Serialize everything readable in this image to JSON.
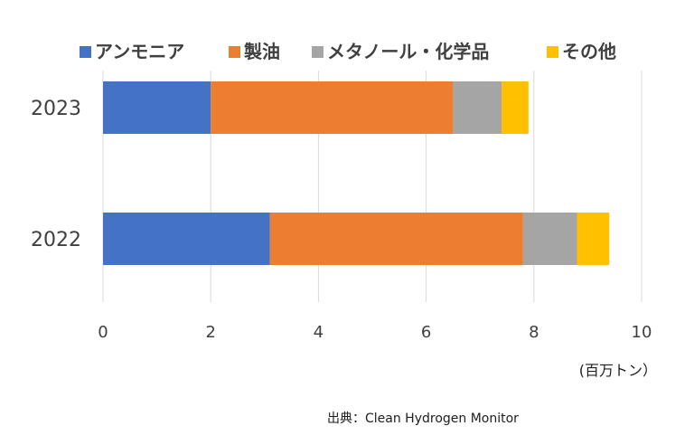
{
  "chart_data": {
    "type": "bar",
    "orientation": "horizontal",
    "stacked": true,
    "categories": [
      "2023",
      "2022"
    ],
    "series": [
      {
        "name": "アンモニア",
        "color": "#4472C4",
        "values": [
          2.0,
          3.1
        ]
      },
      {
        "name": "製油",
        "color": "#ED7D31",
        "values": [
          4.5,
          4.7
        ]
      },
      {
        "name": "メタノール・化学品",
        "color": "#A5A5A5",
        "values": [
          0.9,
          1.0
        ]
      },
      {
        "name": "その他",
        "color": "#FFC000",
        "values": [
          0.5,
          0.6
        ]
      }
    ],
    "xlim": [
      0,
      10
    ],
    "xticks": [
      0,
      2,
      4,
      6,
      8,
      10
    ],
    "unit_label": "(百万トン）",
    "source": "出典：Clean Hydrogen Monitor",
    "legend_position": "top",
    "grid": true
  }
}
